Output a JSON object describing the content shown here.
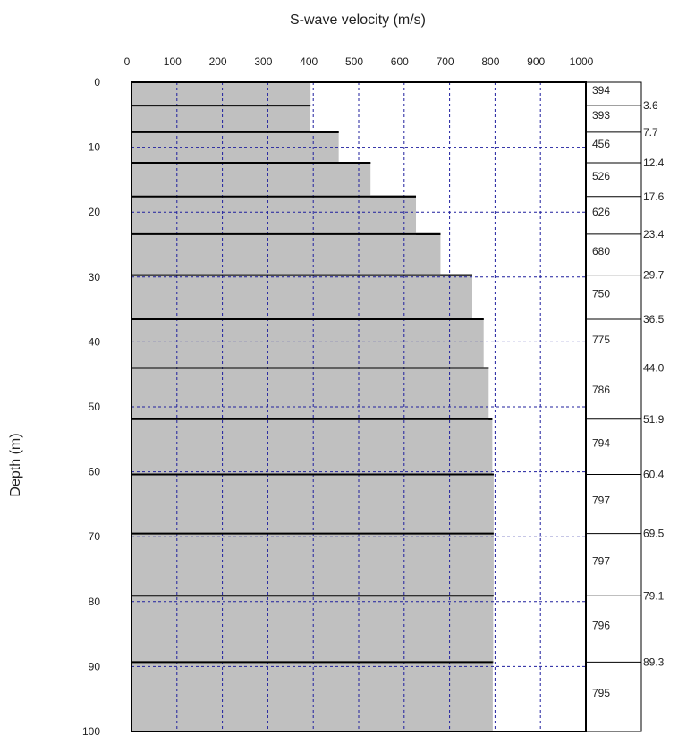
{
  "chart_data": {
    "type": "bar",
    "orientation": "horizontal-step-profile",
    "xlabel": "S-wave velocity (m/s)",
    "ylabel": "Depth (m)",
    "xlim": [
      0,
      1000
    ],
    "ylim": [
      0,
      100
    ],
    "xticks": [
      0,
      100,
      200,
      300,
      400,
      500,
      600,
      700,
      800,
      900,
      1000
    ],
    "yticks": [
      0,
      10,
      20,
      30,
      40,
      50,
      60,
      70,
      80,
      90,
      100
    ],
    "grid": true,
    "layers": [
      {
        "top": 0,
        "bottom": 3.6,
        "velocity": 394
      },
      {
        "top": 3.6,
        "bottom": 7.7,
        "velocity": 393
      },
      {
        "top": 7.7,
        "bottom": 12.4,
        "velocity": 456
      },
      {
        "top": 12.4,
        "bottom": 17.6,
        "velocity": 526
      },
      {
        "top": 17.6,
        "bottom": 23.4,
        "velocity": 626
      },
      {
        "top": 23.4,
        "bottom": 29.7,
        "velocity": 680
      },
      {
        "top": 29.7,
        "bottom": 36.5,
        "velocity": 750
      },
      {
        "top": 36.5,
        "bottom": 44.0,
        "velocity": 775
      },
      {
        "top": 44.0,
        "bottom": 51.9,
        "velocity": 786
      },
      {
        "top": 51.9,
        "bottom": 60.4,
        "velocity": 794
      },
      {
        "top": 60.4,
        "bottom": 69.5,
        "velocity": 797
      },
      {
        "top": 69.5,
        "bottom": 79.1,
        "velocity": 797
      },
      {
        "top": 79.1,
        "bottom": 89.3,
        "velocity": 796
      },
      {
        "top": 89.3,
        "bottom": 100,
        "velocity": 795
      }
    ],
    "boundary_labels": [
      "3.6",
      "7.7",
      "12.4",
      "17.6",
      "23.4",
      "29.7",
      "36.5",
      "44.0",
      "51.9",
      "60.4",
      "69.5",
      "79.1",
      "89.3"
    ],
    "colors": {
      "fill": "#c0c0c0",
      "grid": "#1f1f9e",
      "frame": "#000000"
    }
  }
}
